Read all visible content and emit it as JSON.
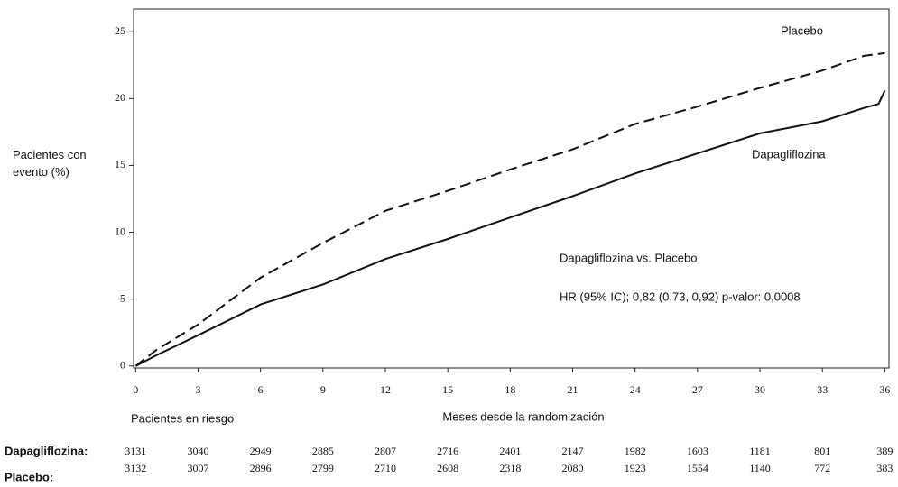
{
  "chart_data": {
    "type": "line",
    "ylabel": "Pacientes con evento (%)",
    "xlabel": "Meses desde la randomización",
    "xlim": [
      -0.1,
      36.2
    ],
    "ylim": [
      -0.15,
      26.7
    ],
    "xticks": [
      0,
      3,
      6,
      9,
      12,
      15,
      18,
      21,
      24,
      27,
      30,
      33,
      36
    ],
    "yticks": [
      0,
      5,
      10,
      15,
      20,
      25
    ],
    "series": [
      {
        "name": "Placebo",
        "color": "#111111",
        "dash": true,
        "x": [
          0,
          1,
          3,
          6,
          9,
          12,
          15,
          18,
          21,
          24,
          27,
          30,
          33,
          35,
          36
        ],
        "values": [
          0,
          1.2,
          3.1,
          6.6,
          9.2,
          11.6,
          13.1,
          14.7,
          16.2,
          18.1,
          19.4,
          20.8,
          22.1,
          23.2,
          23.4
        ]
      },
      {
        "name": "Dapagliflozina",
        "color": "#111111",
        "dash": false,
        "x": [
          0,
          1,
          3,
          6,
          9,
          12,
          15,
          18,
          21,
          24,
          27,
          30,
          33,
          35,
          35.7,
          36
        ],
        "values": [
          0,
          0.8,
          2.3,
          4.6,
          6.1,
          8.0,
          9.5,
          11.1,
          12.7,
          14.4,
          15.9,
          17.4,
          18.3,
          19.3,
          19.6,
          20.6
        ]
      }
    ],
    "annotations": [
      "Dapagliflozina vs. Placebo",
      "HR (95% IC); 0,82 (0,73, 0,92) p-valor: 0,0008"
    ],
    "at_risk": {
      "title": "Pacientes en riesgo",
      "rows": [
        {
          "label": "Dapagliflozina:",
          "values": [
            3131,
            3040,
            2949,
            2885,
            2807,
            2716,
            2401,
            2147,
            1982,
            1603,
            1181,
            801,
            389
          ]
        },
        {
          "label": "Placebo:",
          "values": [
            3132,
            3007,
            2896,
            2799,
            2710,
            2608,
            2318,
            2080,
            1923,
            1554,
            1140,
            772,
            383
          ]
        }
      ]
    }
  }
}
